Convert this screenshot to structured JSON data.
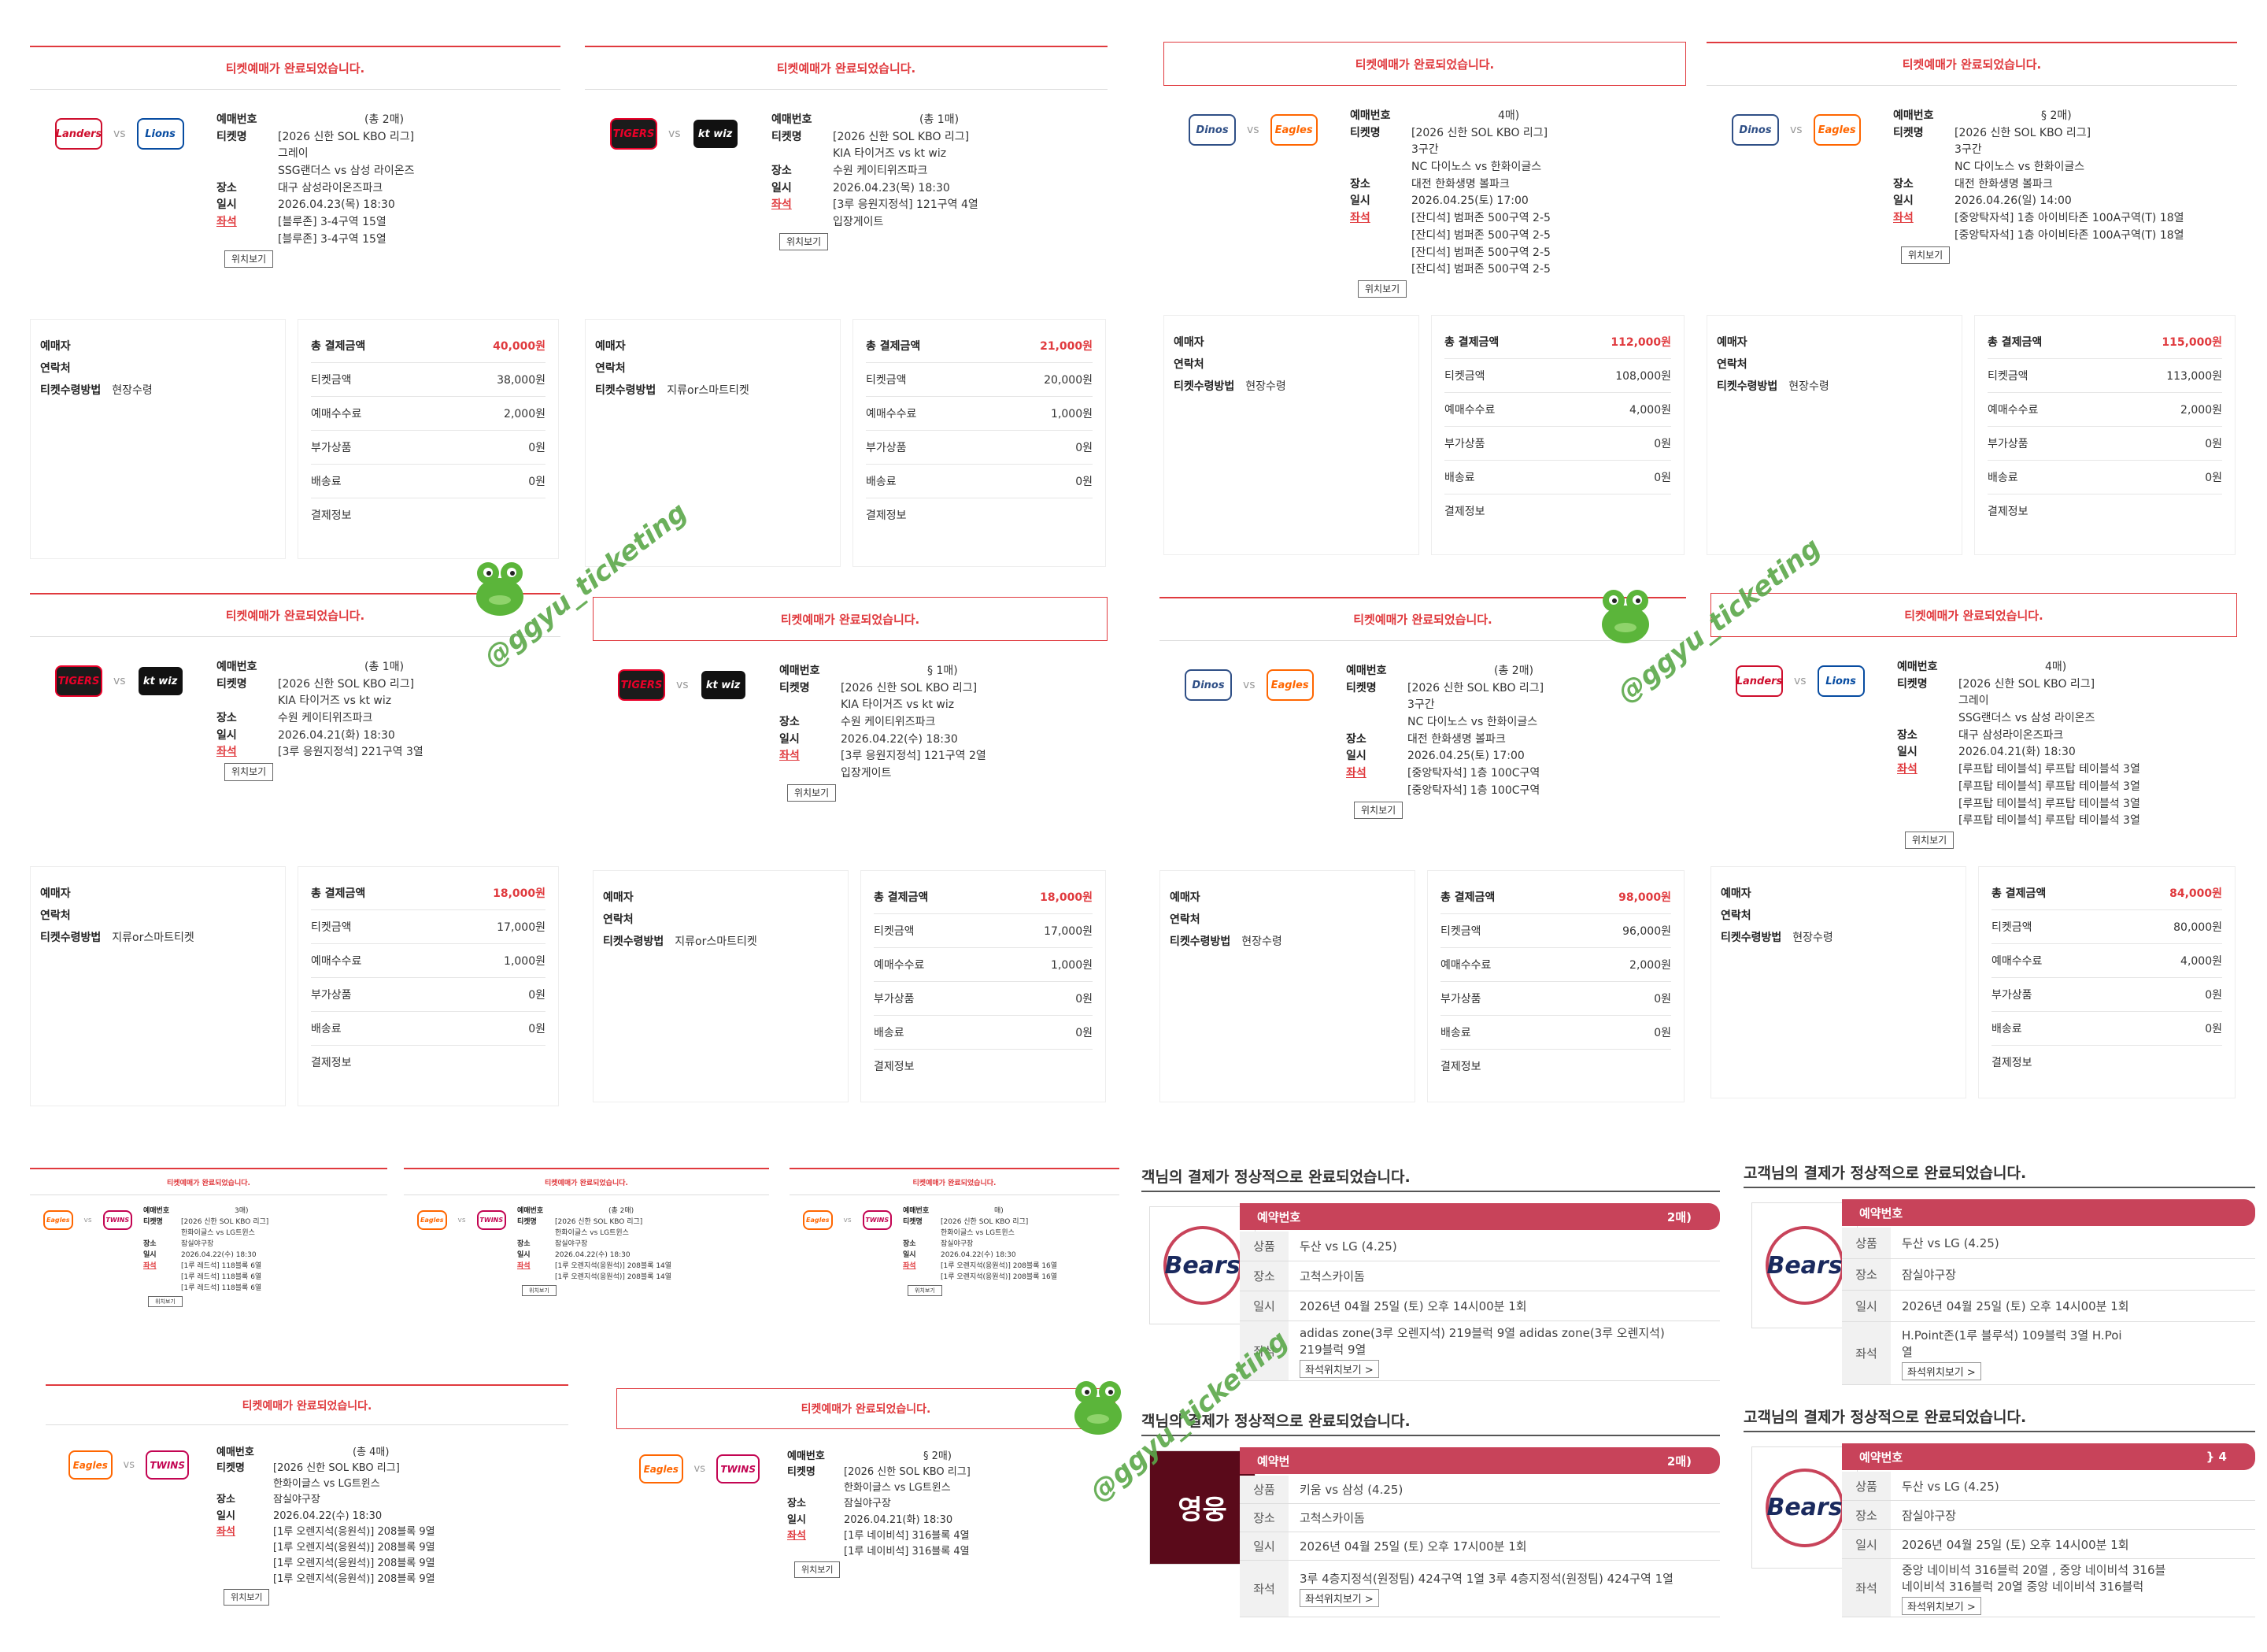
{
  "watermark": "@ggyu_ticketing",
  "teams": {
    "landers": {
      "label": "Landers",
      "color": "#ce0e2d",
      "bg": "#ffffff"
    },
    "lions": {
      "label": "Lions",
      "color": "#074ca1",
      "bg": "#ffffff"
    },
    "tigers": {
      "label": "TIGERS",
      "color": "#ea0029",
      "bg": "#1b1b1b"
    },
    "ktwiz": {
      "label": "kt wiz",
      "color": "#ffffff",
      "bg": "#111111"
    },
    "dinos": {
      "label": "Dinos",
      "color": "#2f4f86",
      "bg": "#ffffff"
    },
    "eagles": {
      "label": "Eagles",
      "color": "#ff6600",
      "bg": "#ffffff"
    },
    "twins": {
      "label": "TWINS",
      "color": "#c30452",
      "bg": "#ffffff"
    }
  },
  "labels": {
    "confirm": "티켓예매가 완료되었습니다.",
    "booking_no": "예매번호",
    "ticket_name": "티켓명",
    "venue": "장소",
    "date": "일시",
    "seat": "좌석",
    "location_btn": "위치보기",
    "buyer": "예매자",
    "contact": "연락처",
    "receive": "티켓수령방법",
    "total": "총 결제금액",
    "ticket_price": "티켓금액",
    "fee": "예매수수료",
    "addon": "부가상품",
    "delivery": "배송료",
    "payinfo": "결제정보"
  },
  "tickets": [
    {
      "home": "landers",
      "away": "lions",
      "count": "(총 2매)",
      "name": [
        "[2026 신한 SOL KBO 리그]",
        "그레이",
        "SSG랜더스 vs 삼성 라이온즈"
      ],
      "venue": "대구 삼성라이온즈파크",
      "date": "2026.04.23(목) 18:30",
      "seats": [
        "[블루존] 3-4구역 15열",
        "[블루존] 3-4구역 15열"
      ],
      "receive": "현장수령",
      "total": "40,000원",
      "price": "38,000원",
      "fee": "2,000원",
      "addon": "0원",
      "delivery": "0원"
    },
    {
      "home": "tigers",
      "away": "ktwiz",
      "count": "(총 1매)",
      "name": [
        "[2026 신한 SOL KBO 리그]",
        "KIA 타이거즈 vs kt wiz"
      ],
      "venue": "수원 케이티위즈파크",
      "date": "2026.04.23(목) 18:30",
      "seats": [
        "[3루 응원지정석] 121구역 4열"
      ],
      "extra": "입장게이트",
      "receive": "지류or스마트티켓",
      "total": "21,000원",
      "price": "20,000원",
      "fee": "1,000원",
      "addon": "0원",
      "delivery": "0원"
    },
    {
      "home": "dinos",
      "away": "eagles",
      "count": "4매)",
      "name": [
        "[2026 신한 SOL KBO 리그]",
        "3구간",
        "NC 다이노스 vs 한화이글스"
      ],
      "venue": "대전 한화생명 볼파크",
      "date": "2026.04.25(토) 17:00",
      "seats": [
        "[잔디석] 범퍼존 500구역 2-5",
        "[잔디석] 범퍼존 500구역 2-5",
        "[잔디석] 범퍼존 500구역 2-5",
        "[잔디석] 범퍼존 500구역 2-5"
      ],
      "receive": "현장수령",
      "total": "112,000원",
      "price": "108,000원",
      "fee": "4,000원",
      "addon": "0원",
      "delivery": "0원"
    },
    {
      "home": "dinos",
      "away": "eagles",
      "count": "§ 2매)",
      "name": [
        "[2026 신한 SOL KBO 리그]",
        "3구간",
        "NC 다이노스 vs 한화이글스"
      ],
      "venue": "대전 한화생명 볼파크",
      "date": "2026.04.26(일) 14:00",
      "seats": [
        "[중앙탁자석] 1층 아이비타존 100A구역(T) 18열",
        "[중앙탁자석] 1층 아이비타존 100A구역(T) 18열"
      ],
      "receive": "현장수령",
      "total": "115,000원",
      "price": "113,000원",
      "fee": "2,000원",
      "addon": "0원",
      "delivery": "0원"
    },
    {
      "home": "tigers",
      "away": "ktwiz",
      "count": "(총 1매)",
      "name": [
        "[2026 신한 SOL KBO 리그]",
        "KIA 타이거즈 vs kt wiz"
      ],
      "venue": "수원 케이티위즈파크",
      "date": "2026.04.21(화) 18:30",
      "seats": [
        "[3루 응원지정석] 221구역 3열"
      ],
      "receive": "지류or스마트티켓",
      "total": "18,000원",
      "price": "17,000원",
      "fee": "1,000원",
      "addon": "0원",
      "delivery": "0원"
    },
    {
      "home": "tigers",
      "away": "ktwiz",
      "count": "§ 1매)",
      "name": [
        "[2026 신한 SOL KBO 리그]",
        "KIA 타이거즈 vs kt wiz"
      ],
      "venue": "수원 케이티위즈파크",
      "date": "2026.04.22(수) 18:30",
      "seats": [
        "[3루 응원지정석] 121구역 2열"
      ],
      "extra": "입장게이트",
      "receive": "지류or스마트티켓",
      "total": "18,000원",
      "price": "17,000원",
      "fee": "1,000원",
      "addon": "0원",
      "delivery": "0원"
    },
    {
      "home": "dinos",
      "away": "eagles",
      "count": "(총 2매)",
      "name": [
        "[2026 신한 SOL KBO 리그]",
        "3구간",
        "NC 다이노스 vs 한화이글스"
      ],
      "venue": "대전 한화생명 볼파크",
      "date": "2026.04.25(토) 17:00",
      "seats": [
        "[중앙탁자석] 1층 100C구역",
        "[중앙탁자석] 1층 100C구역"
      ],
      "receive": "현장수령",
      "total": "98,000원",
      "price": "96,000원",
      "fee": "2,000원",
      "addon": "0원",
      "delivery": "0원"
    },
    {
      "home": "landers",
      "away": "lions",
      "count": "4매)",
      "name": [
        "[2026 신한 SOL KBO 리그]",
        "그레이",
        "SSG랜더스 vs 삼성 라이온즈"
      ],
      "venue": "대구 삼성라이온즈파크",
      "date": "2026.04.21(화) 18:30",
      "seats": [
        "[루프탑 테이블석] 루프탑 테이블석 3열",
        "[루프탑 테이블석] 루프탑 테이블석 3열",
        "[루프탑 테이블석] 루프탑 테이블석 3열",
        "[루프탑 테이블석] 루프탑 테이블석 3열"
      ],
      "receive": "현장수령",
      "total": "84,000원",
      "price": "80,000원",
      "fee": "4,000원",
      "addon": "0원",
      "delivery": "0원"
    },
    {
      "home": "eagles",
      "away": "twins",
      "count": "3매)",
      "name": [
        "[2026 신한 SOL KBO 리그]",
        "한화이글스 vs LG트윈스"
      ],
      "venue": "잠실야구장",
      "date": "2026.04.22(수) 18:30",
      "seats": [
        "[1루 레드석] 118블록 6열",
        "[1루 레드석] 118블록 6열",
        "[1루 레드석] 118블록 6열"
      ]
    },
    {
      "home": "eagles",
      "away": "twins",
      "count": "(총 2매)",
      "name": [
        "[2026 신한 SOL KBO 리그]",
        "한화이글스 vs LG트윈스"
      ],
      "venue": "잠실야구장",
      "date": "2026.04.22(수) 18:30",
      "seats": [
        "[1루 오렌지석(응원석)] 208블록 14열",
        "[1루 오렌지석(응원석)] 208블록 14열"
      ]
    },
    {
      "home": "eagles",
      "away": "twins",
      "count": "매)",
      "name": [
        "[2026 신한 SOL KBO 리그]",
        "한화이글스 vs LG트윈스"
      ],
      "venue": "잠실야구장",
      "date": "2026.04.22(수) 18:30",
      "seats": [
        "[1루 오렌지석(응원석)] 208블록 16열",
        "[1루 오렌지석(응원석)] 208블록 16열"
      ]
    },
    {
      "home": "eagles",
      "away": "twins",
      "count": "(총 4매)",
      "name": [
        "[2026 신한 SOL KBO 리그]",
        "한화이글스 vs LG트윈스"
      ],
      "venue": "잠실야구장",
      "date": "2026.04.22(수) 18:30",
      "seats": [
        "[1루 오렌지석(응원석)] 208블록 9열",
        "[1루 오렌지석(응원석)] 208블록 9열",
        "[1루 오렌지석(응원석)] 208블록 9열",
        "[1루 오렌지석(응원석)] 208블록 9열"
      ]
    },
    {
      "home": "eagles",
      "away": "twins",
      "count": "§ 2매)",
      "name": [
        "[2026 신한 SOL KBO 리그]",
        "한화이글스 vs LG트윈스"
      ],
      "venue": "잠실야구장",
      "date": "2026.04.21(화) 18:30",
      "seats": [
        "[1루 네이비석] 316블록 4열",
        "[1루 네이비석] 316블록 4열"
      ]
    }
  ],
  "payment_cards": [
    {
      "title": "객님의 결제가 정상적으로 완료되었습니다.",
      "bar": "예약번호",
      "bar_right": "2매)",
      "logo": "bears",
      "product": "두산 vs LG (4.25)",
      "venue": "고척스카이돔",
      "date": "2026년 04월 25일 (토) 오후 14시00분 1회",
      "seats": [
        "adidas zone(3루 오렌지석) 219블럭 9열    adidas zone(3루 오렌지석)",
        "219블럭 9열"
      ],
      "seat_btn": "좌석위치보기 >"
    },
    {
      "title": "고객님의 결제가 정상적으로 완료되었습니다.",
      "bar": "예약번호",
      "bar_right": "",
      "logo": "bears",
      "product": "두산 vs LG (4.25)",
      "venue": "잠실야구장",
      "date": "2026년 04월 25일 (토) 오후 14시00분 1회",
      "seats": [
        "H.Point존(1루 블루석) 109블럭 3열     H.Poi",
        "열"
      ],
      "seat_btn": "좌석위치보기 >"
    },
    {
      "title": "객님의 결제가 정상적으로 완료되었습니다.",
      "bar": "예약번",
      "bar_right": "2매)",
      "logo": "heroes",
      "product": "키움 vs 삼성 (4.25)",
      "venue": "고척스카이돔",
      "date": "2026년 04월 25일 (토) 오후 17시00분 1회",
      "seats": [
        "3루 4층지정석(원정팀) 424구역 1열    3루 4층지정석(원정팀) 424구역 1열"
      ],
      "seat_btn": "좌석위치보기 >"
    },
    {
      "title": "고객님의 결제가 정상적으로 완료되었습니다.",
      "bar": "예약번호",
      "bar_right": "} 4",
      "logo": "bears",
      "product": "두산 vs LG (4.25)",
      "venue": "잠실야구장",
      "date": "2026년 04월 25일 (토) 오후 14시00분 1회",
      "seats": [
        "중앙 네이비석 316블럭 20열    , 중앙 네이비석 316블",
        "네이비석 316블럭 20열        중앙 네이비석 316블럭"
      ],
      "seat_btn": "좌석위치보기 >"
    }
  ],
  "pc_labels": {
    "product": "상품",
    "venue": "장소",
    "date": "일시",
    "seat": "좌석"
  },
  "logos": {
    "bears": "Bears",
    "heroes": "영웅"
  }
}
